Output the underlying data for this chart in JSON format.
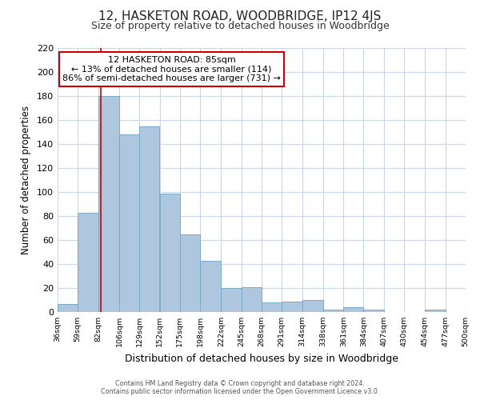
{
  "title": "12, HASKETON ROAD, WOODBRIDGE, IP12 4JS",
  "subtitle": "Size of property relative to detached houses in Woodbridge",
  "xlabel": "Distribution of detached houses by size in Woodbridge",
  "ylabel": "Number of detached properties",
  "bins": [
    36,
    59,
    82,
    106,
    129,
    152,
    175,
    198,
    222,
    245,
    268,
    291,
    314,
    338,
    361,
    384,
    407,
    430,
    454,
    477,
    500
  ],
  "counts": [
    7,
    83,
    180,
    148,
    155,
    99,
    65,
    43,
    20,
    21,
    8,
    9,
    10,
    2,
    4,
    2,
    0,
    0,
    2,
    0
  ],
  "bar_color": "#aec6de",
  "bar_edge_color": "#7aaac8",
  "reference_line_x": 85,
  "reference_line_color": "#cc0000",
  "annotation_line1": "12 HASKETON ROAD: 85sqm",
  "annotation_line2": "← 13% of detached houses are smaller (114)",
  "annotation_line3": "86% of semi-detached houses are larger (731) →",
  "annotation_box_color": "#ffffff",
  "annotation_box_edge_color": "#cc0000",
  "ylim": [
    0,
    220
  ],
  "yticks": [
    0,
    20,
    40,
    60,
    80,
    100,
    120,
    140,
    160,
    180,
    200,
    220
  ],
  "tick_labels": [
    "36sqm",
    "59sqm",
    "82sqm",
    "106sqm",
    "129sqm",
    "152sqm",
    "175sqm",
    "198sqm",
    "222sqm",
    "245sqm",
    "268sqm",
    "291sqm",
    "314sqm",
    "338sqm",
    "361sqm",
    "384sqm",
    "407sqm",
    "430sqm",
    "454sqm",
    "477sqm",
    "500sqm"
  ],
  "footer_line1": "Contains HM Land Registry data © Crown copyright and database right 2024.",
  "footer_line2": "Contains public sector information licensed under the Open Government Licence v3.0.",
  "bg_color": "#ffffff",
  "grid_color": "#ccd6e8"
}
